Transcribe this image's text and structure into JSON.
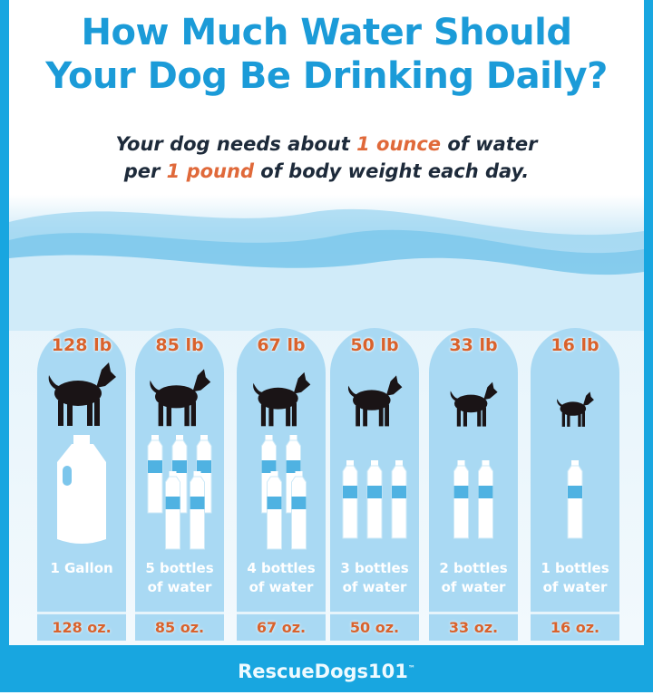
{
  "title_line1": "How Much Water Should",
  "title_line2": "Your Dog Be Drinking Daily?",
  "subtitle": {
    "a": "Your dog needs about ",
    "b": "1 ounce",
    "c": " of water",
    "d": "per ",
    "e": "1 pound",
    "f": " of body weight each day."
  },
  "colors": {
    "frame": "#18a6e0",
    "title": "#1b9bd8",
    "highlight": "#e0693a",
    "pillar": "#a9d9f3"
  },
  "columns": [
    {
      "weight": "128 lb",
      "desc1": "1 Gallon",
      "desc2": "",
      "ounces": "128 oz.",
      "container": "gallon-jug",
      "bottles": 0
    },
    {
      "weight": "85 lb",
      "desc1": "5 bottles",
      "desc2": "of water",
      "ounces": "85 oz.",
      "container": "bottle",
      "bottles": 5
    },
    {
      "weight": "67 lb",
      "desc1": "4 bottles",
      "desc2": "of water",
      "ounces": "67 oz.",
      "container": "bottle",
      "bottles": 4
    },
    {
      "weight": "50 lb",
      "desc1": "3 bottles",
      "desc2": "of water",
      "ounces": "50 oz.",
      "container": "bottle",
      "bottles": 3
    },
    {
      "weight": "33 lb",
      "desc1": "2 bottles",
      "desc2": "of water",
      "ounces": "33 oz.",
      "container": "bottle",
      "bottles": 2
    },
    {
      "weight": "16 lb",
      "desc1": "1 bottles",
      "desc2": "of water",
      "ounces": "16 oz.",
      "container": "bottle",
      "bottles": 1
    }
  ],
  "footer": {
    "brand": "RescueDogs101",
    "tm": "™"
  }
}
